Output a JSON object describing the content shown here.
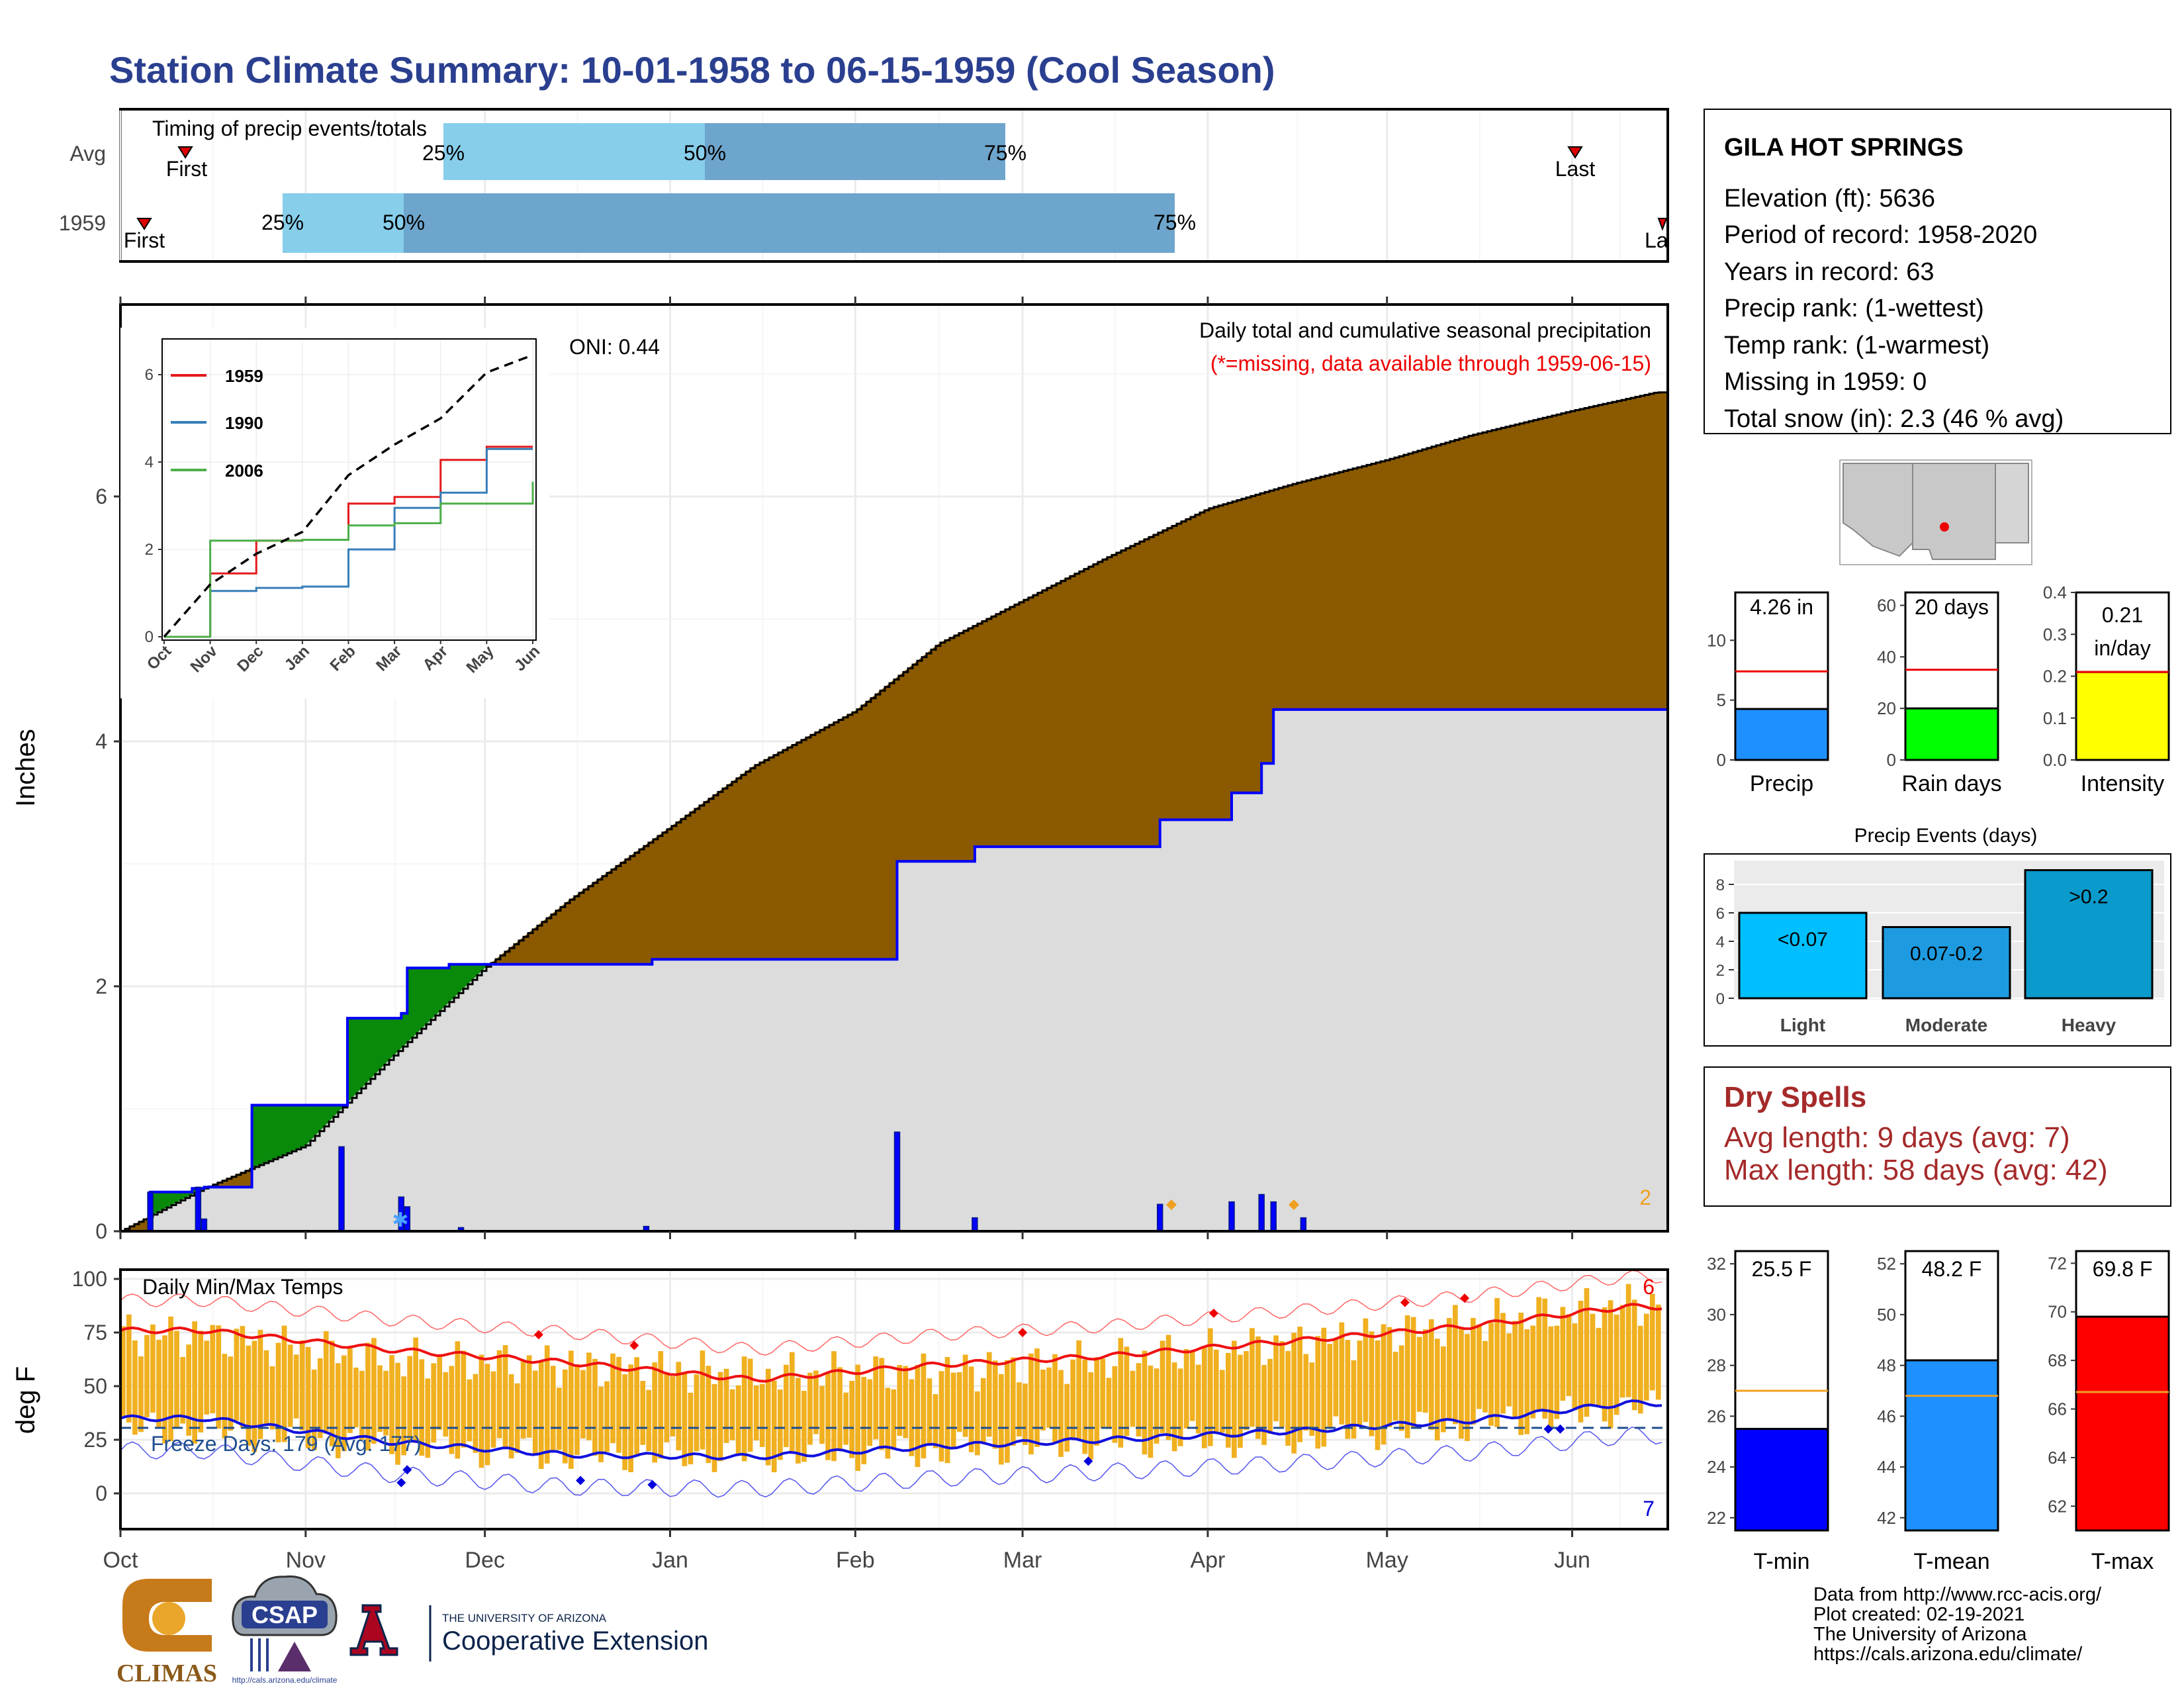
{
  "title": "Station Climate Summary: 10-01-1958 to 06-15-1959 (Cool Season)",
  "colors": {
    "title": "#2a3f8f",
    "cum_brown": "#8b5a00",
    "cum_green": "#0a8a0a",
    "avg_fill": "#dcdcdc",
    "precip_blue": "#0000ff",
    "temp_bar": "#f0b020",
    "tmax_avg": "#ee1111",
    "tmin_avg": "#1111dd",
    "dry_spells": "#a52a2a",
    "timing_light": "#87ceeb",
    "timing_dark": "#6ea5cc"
  },
  "timing": {
    "title": "Timing of precip events/totals",
    "rows": [
      {
        "label": "Avg",
        "first": "First",
        "last": "Last",
        "p25": "25%",
        "p50": "50%",
        "p75": "75%"
      },
      {
        "label": "1959",
        "first": "First",
        "last": "La",
        "p25": "25%",
        "p50": "50%",
        "p75": "75%"
      }
    ]
  },
  "precip_panel": {
    "ylabel": "Inches",
    "yticks": [
      "0",
      "2",
      "4",
      "6"
    ],
    "oni": "ONI: 0.44",
    "caption1": "Daily total and cumulative seasonal precipitation",
    "caption2": "(*=missing, data available through 1959-06-15)",
    "corner_count": "2"
  },
  "inset": {
    "yticks": [
      "0",
      "2",
      "4",
      "6"
    ],
    "xticks": [
      "Oct",
      "Nov",
      "Dec",
      "Jan",
      "Feb",
      "Mar",
      "Apr",
      "May",
      "Jun"
    ],
    "legend": [
      {
        "name": "1959",
        "color": "#e41a1c"
      },
      {
        "name": "1990",
        "color": "#377eb8"
      },
      {
        "name": "2006",
        "color": "#4daf4a"
      }
    ]
  },
  "temp_panel": {
    "ylabel": "deg F",
    "title": "Daily Min/Max Temps",
    "freeze": "Freeze Days: 179 (Avg: 177)",
    "yticks": [
      "0",
      "25",
      "50",
      "75",
      "100"
    ],
    "count_top": "6",
    "count_bottom": "7"
  },
  "months": [
    "Oct",
    "Nov",
    "Dec",
    "Jan",
    "Feb",
    "Mar",
    "Apr",
    "May",
    "Jun"
  ],
  "station": {
    "name": "GILA HOT SPRINGS",
    "lines": [
      "Elevation (ft): 5636",
      "Period of record: 1958-2020",
      "Years in record: 63",
      "Precip rank:  (1-wettest)",
      "Temp rank:  (1-warmest)",
      "Missing in 1959: 0",
      "Total snow (in): 2.3 (46 % avg)"
    ]
  },
  "mini_bars": [
    {
      "label": "Precip",
      "value_text": "4.26 in",
      "yticks": [
        "0",
        "5",
        "10"
      ]
    },
    {
      "label": "Rain days",
      "value_text": "20 days",
      "yticks": [
        "0",
        "20",
        "40",
        "60"
      ]
    },
    {
      "label": "Intensity",
      "value_text_1": "0.21",
      "value_text_2": "in/day",
      "yticks": [
        "0.0",
        "0.1",
        "0.2",
        "0.3",
        "0.4"
      ]
    }
  ],
  "events": {
    "title": "Precip Events (days)",
    "yticks": [
      "0",
      "2",
      "4",
      "6",
      "8"
    ],
    "bars": [
      {
        "label": "Light",
        "tag": "<0.07"
      },
      {
        "label": "Moderate",
        "tag": "0.07-0.2"
      },
      {
        "label": "Heavy",
        "tag": ">0.2"
      }
    ]
  },
  "dry": {
    "title": "Dry Spells",
    "avg": "Avg length: 9 days (avg: 7)",
    "max": "Max length: 58 days (avg: 42)"
  },
  "temp_bars": [
    {
      "label": "T-min",
      "value_text": "25.5 F",
      "yticks": [
        "22",
        "24",
        "26",
        "28",
        "30",
        "32"
      ]
    },
    {
      "label": "T-mean",
      "value_text": "48.2 F",
      "yticks": [
        "42",
        "44",
        "46",
        "48",
        "50",
        "52"
      ]
    },
    {
      "label": "T-max",
      "value_text": "69.8 F",
      "yticks": [
        "62",
        "64",
        "66",
        "68",
        "70",
        "72"
      ]
    }
  ],
  "footer": {
    "lines": [
      "Data from http://www.rcc-acis.org/",
      "Plot created: 02-19-2021",
      "The University of Arizona",
      "https://cals.arizona.edu/climate/"
    ],
    "climas": "CLIMAS",
    "csap": "CSAP",
    "csap_url": "http://cals.arizona.edu/climate",
    "ua_small": "THE UNIVERSITY OF ARIZONA",
    "ua_big": "Cooperative Extension"
  },
  "chart_data": [
    {
      "type": "area",
      "title": "Daily total and cumulative seasonal precipitation",
      "ylabel": "Inches",
      "ylim": [
        0,
        7.5
      ],
      "x_range": [
        "1958-10-01",
        "1959-06-15"
      ],
      "series": [
        {
          "name": "1959",
          "x": [
            "1958-10-01",
            "1958-10-15",
            "1958-11-01",
            "1958-11-15",
            "1958-12-01",
            "1958-12-15",
            "1959-01-01",
            "1959-01-15",
            "1959-02-01",
            "1959-02-15",
            "1959-03-01",
            "1959-03-15",
            "1959-04-01",
            "1959-04-15",
            "1959-05-01",
            "1959-05-15",
            "1959-06-01",
            "1959-06-15"
          ],
          "values": [
            0.0,
            0.35,
            0.7,
            1.4,
            2.15,
            2.7,
            3.3,
            3.8,
            4.25,
            4.8,
            5.15,
            5.5,
            5.9,
            6.1,
            6.3,
            6.5,
            6.7,
            6.85
          ]
        },
        {
          "name": "1959",
          "x": [
            "1958-10-01",
            "1958-10-06",
            "1958-10-13",
            "1958-10-15",
            "1958-10-23",
            "1958-11-08",
            "1958-11-17",
            "1958-11-18",
            "1958-11-25",
            "1958-12-29",
            "1959-02-08",
            "1959-02-21",
            "1959-03-24",
            "1959-04-05",
            "1959-04-10",
            "1959-04-12",
            "1959-06-15"
          ],
          "values": [
            0.0,
            0.32,
            0.35,
            0.36,
            1.03,
            1.74,
            1.78,
            2.15,
            2.18,
            2.22,
            3.02,
            3.14,
            3.36,
            3.58,
            3.82,
            4.26,
            4.26
          ]
        }
      ],
      "daily_precip_inches": [
        {
          "date": "1958-10-06",
          "value": 0.32
        },
        {
          "date": "1958-10-14",
          "value": 0.36
        },
        {
          "date": "1958-10-15",
          "value": 0.1
        },
        {
          "date": "1958-11-07",
          "value": 0.69
        },
        {
          "date": "1958-11-17",
          "value": 0.28
        },
        {
          "date": "1958-11-18",
          "value": 0.2
        },
        {
          "date": "1958-11-27",
          "value": 0.03
        },
        {
          "date": "1958-12-28",
          "value": 0.04
        },
        {
          "date": "1959-02-08",
          "value": 0.81
        },
        {
          "date": "1959-02-21",
          "value": 0.11
        },
        {
          "date": "1959-03-24",
          "value": 0.22
        },
        {
          "date": "1959-04-05",
          "value": 0.24
        },
        {
          "date": "1959-04-10",
          "value": 0.3
        },
        {
          "date": "1959-04-12",
          "value": 0.24
        },
        {
          "date": "1959-04-17",
          "value": 0.11
        }
      ]
    },
    {
      "type": "line",
      "title": "",
      "ylim": [
        0,
        6.6
      ],
      "categories": [
        "Oct",
        "Nov",
        "Dec",
        "Jan",
        "Feb",
        "Mar",
        "Apr",
        "May",
        "Jun"
      ],
      "series": [
        {
          "name": "1959",
          "values": [
            0.0,
            1.45,
            2.2,
            2.22,
            3.05,
            3.2,
            4.05,
            4.35,
            4.35
          ]
        },
        {
          "name": "1990",
          "values": [
            0.0,
            1.05,
            1.12,
            1.15,
            2.0,
            2.95,
            3.3,
            4.3,
            4.3
          ]
        },
        {
          "name": "2006",
          "values": [
            0.0,
            2.2,
            2.2,
            2.22,
            2.55,
            2.6,
            3.05,
            3.05,
            3.55
          ]
        },
        {
          "name": "",
          "values": [
            0.0,
            1.2,
            1.9,
            2.4,
            3.7,
            4.4,
            5.0,
            6.05,
            6.45
          ]
        }
      ]
    },
    {
      "type": "bar",
      "title": "Daily Min/Max Temps",
      "ylabel": "deg F",
      "ylim": [
        -15,
        100
      ],
      "x": [
        "1958-10-15",
        "1958-11-15",
        "1958-12-15",
        "1959-01-15",
        "1959-02-15",
        "1959-03-15",
        "1959-04-15",
        "1959-05-15",
        "1959-06-10"
      ],
      "series": [
        {
          "name": "Tmax",
          "values": [
            74,
            62,
            60,
            55,
            57,
            62,
            70,
            79,
            88
          ]
        },
        {
          "name": "Tmin",
          "values": [
            30,
            22,
            18,
            18,
            20,
            24,
            26,
            32,
            40
          ]
        },
        {
          "name": "Avg Tmax",
          "values": [
            76,
            67,
            61,
            53,
            60,
            64,
            71,
            78,
            87
          ]
        },
        {
          "name": "Avg Tmin",
          "values": [
            35,
            24,
            18,
            17,
            22,
            25,
            29,
            34,
            42
          ]
        }
      ]
    },
    {
      "type": "bar",
      "categories": [
        "Precip",
        "Rain days",
        "Intensity"
      ],
      "series": [
        {
          "name": "1959",
          "values": [
            4.26,
            20,
            0.21
          ]
        },
        {
          "name": "Avg",
          "values": [
            7.4,
            35,
            0.21
          ]
        }
      ],
      "ylims": [
        [
          0,
          14
        ],
        [
          0,
          65
        ],
        [
          0,
          0.4
        ]
      ]
    },
    {
      "type": "bar",
      "title": "Precip Events (days)",
      "categories": [
        "Light",
        "Moderate",
        "Heavy"
      ],
      "values": [
        6,
        5,
        9
      ],
      "ylim": [
        0,
        9.5
      ]
    },
    {
      "type": "bar",
      "categories": [
        "T-min",
        "T-mean",
        "T-max"
      ],
      "series": [
        {
          "name": "1959",
          "values": [
            25.5,
            48.2,
            69.8
          ]
        },
        {
          "name": "Avg",
          "values": [
            27.0,
            46.8,
            66.7
          ]
        }
      ],
      "ylims": [
        [
          21.5,
          32.5
        ],
        [
          41.5,
          52.5
        ],
        [
          61,
          72.5
        ]
      ]
    }
  ]
}
